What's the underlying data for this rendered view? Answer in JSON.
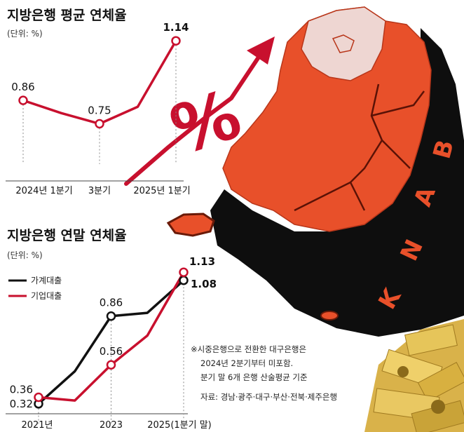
{
  "colors": {
    "red": "#c8102e",
    "black": "#111111",
    "orange": "#e8502a",
    "map_shadow": "#0e0e0e"
  },
  "illustration": {
    "percent_symbol": "%",
    "bank_letters": [
      "B",
      "A",
      "N",
      "K"
    ]
  },
  "chart_data": [
    {
      "type": "line",
      "title": "지방은행 평균 연체율",
      "unit": "(단위: %)",
      "categories": [
        "2024년 1분기",
        "",
        "3분기",
        "",
        "2025년 1분기"
      ],
      "series": [
        {
          "color": "#c8102e",
          "values": [
            0.86,
            0.8,
            0.75,
            0.83,
            1.14
          ],
          "labels": [
            "0.86",
            "",
            "0.75",
            "",
            "1.14"
          ]
        }
      ],
      "ylim": [
        0.6,
        1.2
      ],
      "grid": false
    },
    {
      "type": "line",
      "title": "지방은행 연말 연체율",
      "unit": "(단위: %)",
      "categories": [
        "2021년",
        "",
        "2023",
        "",
        "2025(1분기 말)"
      ],
      "series": [
        {
          "name": "가계대출",
          "color": "#111111",
          "values": [
            0.32,
            0.52,
            0.86,
            0.88,
            1.08
          ],
          "labels": [
            "0.32",
            "",
            "0.86",
            "",
            "1.08"
          ]
        },
        {
          "name": "기업대출",
          "color": "#c8102e",
          "values": [
            0.36,
            0.34,
            0.56,
            0.74,
            1.13
          ],
          "labels": [
            "0.36",
            "",
            "0.56",
            "",
            "1.13"
          ]
        }
      ],
      "ylim": [
        0.25,
        1.2
      ],
      "legend": "top-left",
      "grid": false,
      "notes": [
        "※시중은행으로 전환한 대구은행은",
        "2024년 2분기부터 미포함.",
        "분기 말 6개 은행 산술평균 기준"
      ],
      "source": "자료: 경남·광주·대구·부산·전북·제주은행"
    }
  ]
}
